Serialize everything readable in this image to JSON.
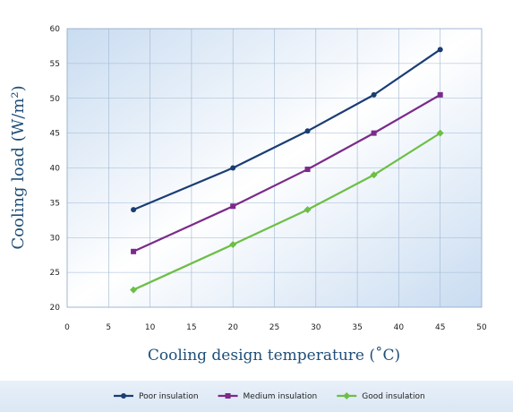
{
  "chart_data": {
    "type": "line",
    "xlabel": "Cooling design temperature (˚C)",
    "ylabel": "Cooling load (W/m²)",
    "xlim": [
      0,
      50
    ],
    "ylim": [
      20,
      60
    ],
    "x_ticks": [
      0,
      5,
      10,
      15,
      20,
      25,
      30,
      35,
      40,
      45,
      50
    ],
    "y_ticks": [
      20,
      25,
      30,
      35,
      40,
      45,
      50,
      55,
      60
    ],
    "grid": true,
    "legend_position": "bottom",
    "background_gradient": [
      "#cfe0f2",
      "#ffffff",
      "#cfe0f2"
    ],
    "series": [
      {
        "name": "Poor insulation",
        "color": "#1a3d73",
        "marker": "circle",
        "points": [
          [
            8,
            34
          ],
          [
            20,
            40
          ],
          [
            29,
            45.3
          ],
          [
            37,
            50.5
          ],
          [
            45,
            57
          ]
        ]
      },
      {
        "name": "Medium insulation",
        "color": "#7b2a8a",
        "marker": "square",
        "points": [
          [
            8,
            28
          ],
          [
            20,
            34.5
          ],
          [
            29,
            39.8
          ],
          [
            37,
            45
          ],
          [
            45,
            50.5
          ]
        ]
      },
      {
        "name": "Good insulation",
        "color": "#6cbf45",
        "marker": "diamond",
        "points": [
          [
            8,
            22.5
          ],
          [
            20,
            29
          ],
          [
            29,
            34
          ],
          [
            37,
            39
          ],
          [
            45,
            45
          ]
        ]
      }
    ]
  }
}
